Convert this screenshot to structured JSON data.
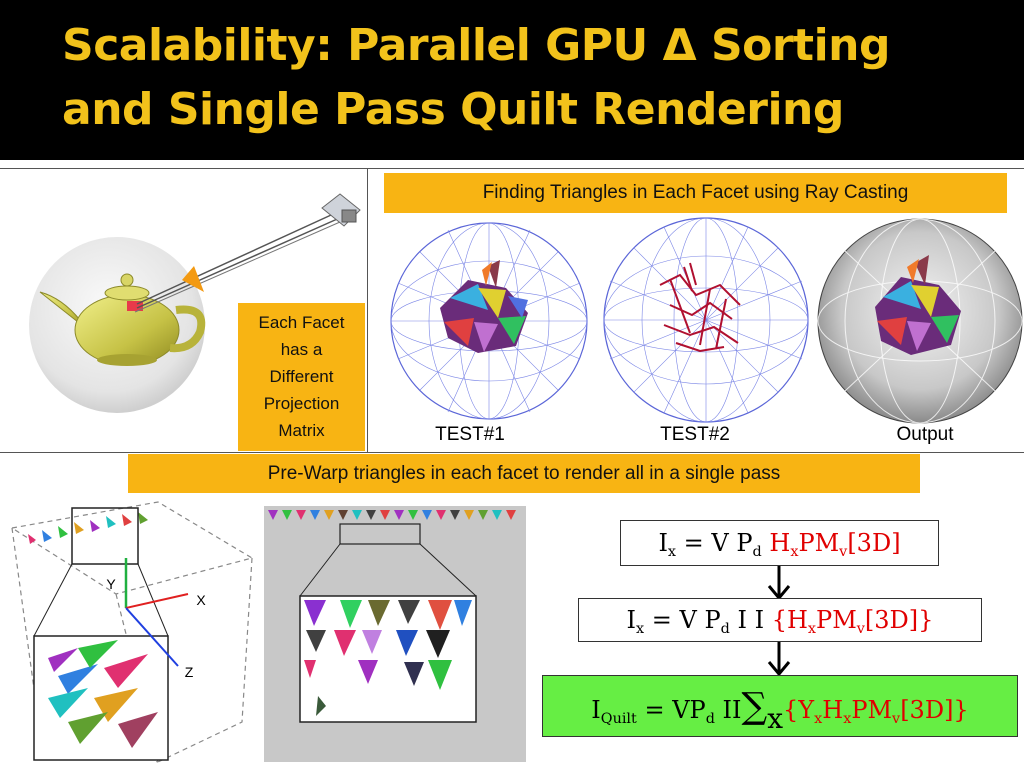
{
  "title": {
    "line1": "Scalability: Parallel GPU Δ Sorting",
    "line2": "and Single Pass Quilt Rendering"
  },
  "facet_box": {
    "lines": [
      "Each Facet",
      "has a",
      "Different",
      "Projection",
      "Matrix"
    ]
  },
  "ray_casting_box": "Finding Triangles in Each Facet using Ray Casting",
  "captions": {
    "test1": "TEST#1",
    "test2": "TEST#2",
    "output": "Output"
  },
  "prewarp_box": "Pre-Warp triangles in each facet to render all in a single pass",
  "axes": {
    "x": "X",
    "y": "Y",
    "z": "Z"
  },
  "equations": {
    "eq1": {
      "I": "I",
      "x": "x",
      "eqsign": " = V P",
      "d": "d",
      "H": " H",
      "hx": "x",
      "PM": "PM",
      "v": "v",
      "tail": "[3D]"
    },
    "eq2": {
      "I": "I",
      "x": "x",
      "eqsign": " = V P",
      "d": "d",
      "mid": " I I ",
      "open": "{H",
      "hx": "x",
      "PM": "PM",
      "v": "v",
      "tail": "[3D]}"
    },
    "eq3": {
      "I": "I",
      "quilt": "Quilt",
      "eqsign": " = VP",
      "d": "d",
      "mid": " II",
      "sigma": "∑",
      "sx": "x",
      "open": "{Y",
      "yx": "x",
      "H": "H",
      "hx": "x",
      "PM": "PM",
      "v": "v",
      "tail": "[3D]}"
    }
  },
  "colors": {
    "title": "#f2c21b",
    "accent_box": "#f8b413",
    "green_box": "#66ee44",
    "red_text": "#e00000"
  }
}
